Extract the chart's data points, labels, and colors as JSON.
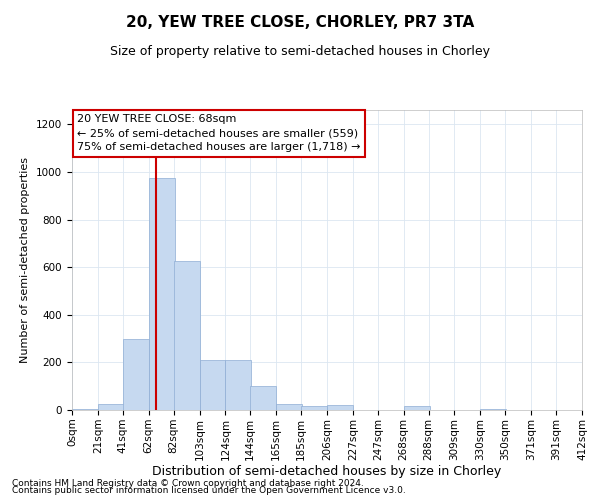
{
  "title": "20, YEW TREE CLOSE, CHORLEY, PR7 3TA",
  "subtitle": "Size of property relative to semi-detached houses in Chorley",
  "xlabel": "Distribution of semi-detached houses by size in Chorley",
  "ylabel": "Number of semi-detached properties",
  "footer1": "Contains HM Land Registry data © Crown copyright and database right 2024.",
  "footer2": "Contains public sector information licensed under the Open Government Licence v3.0.",
  "annotation_line1": "20 YEW TREE CLOSE: 68sqm",
  "annotation_line2": "← 25% of semi-detached houses are smaller (559)",
  "annotation_line3": "75% of semi-detached houses are larger (1,718) →",
  "bin_edges": [
    0,
    21,
    41,
    62,
    82,
    103,
    124,
    144,
    165,
    185,
    206,
    227,
    247,
    268,
    288,
    309,
    330,
    350,
    371,
    391,
    412
  ],
  "bar_heights": [
    5,
    25,
    300,
    975,
    625,
    210,
    210,
    100,
    25,
    15,
    20,
    0,
    0,
    15,
    0,
    0,
    5,
    0,
    0,
    0
  ],
  "bar_color": "#c6d9f0",
  "bar_edge_color": "#8eadd4",
  "property_size": 68,
  "red_line_color": "#cc0000",
  "ylim": [
    0,
    1260
  ],
  "yticks": [
    0,
    200,
    400,
    600,
    800,
    1000,
    1200
  ],
  "title_fontsize": 11,
  "subtitle_fontsize": 9,
  "xlabel_fontsize": 9,
  "ylabel_fontsize": 8,
  "tick_fontsize": 7.5,
  "annotation_fontsize": 8,
  "footer_fontsize": 6.5,
  "bg_color": "#ffffff",
  "grid_color": "#dce6f1"
}
